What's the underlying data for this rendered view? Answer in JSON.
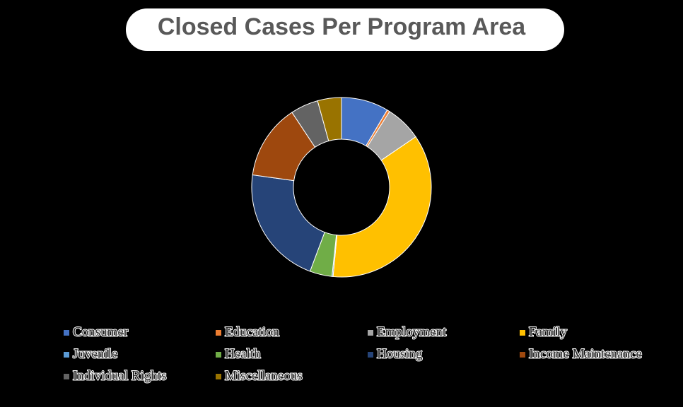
{
  "chart_data": {
    "type": "donut",
    "title": "Closed Cases Per Program Area",
    "categories": [
      "Consumer",
      "Education",
      "Employment",
      "Family",
      "Juvenile",
      "Health",
      "Housing",
      "Income Maintenance",
      "Individual Rights",
      "Miscellaneous"
    ],
    "values": [
      8.5,
      0.5,
      6.5,
      36,
      0.2,
      4,
      21.5,
      13.5,
      5,
      4.3
    ],
    "colors": [
      "#4472c4",
      "#ed7d31",
      "#a5a5a5",
      "#ffc000",
      "#5b9bd5",
      "#70ad47",
      "#264478",
      "#9e480e",
      "#636363",
      "#997300"
    ],
    "legend": "bottom"
  }
}
